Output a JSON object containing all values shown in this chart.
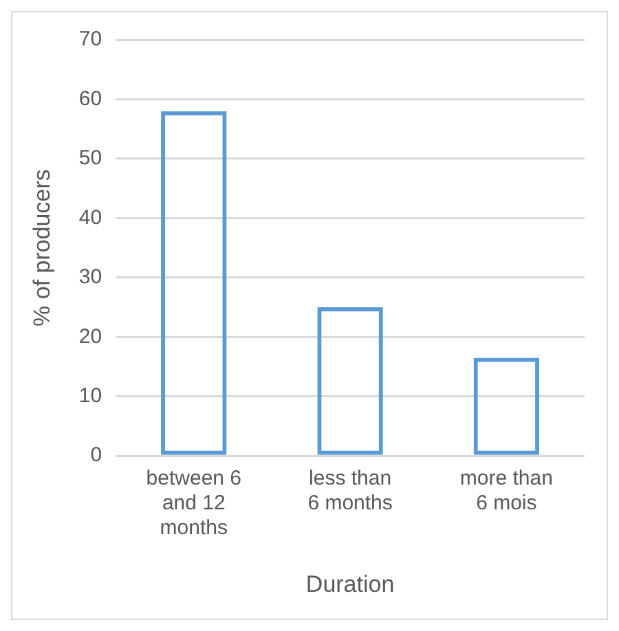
{
  "chart_data": {
    "type": "bar",
    "xlabel": "Duration",
    "ylabel": "% of producers",
    "categories": [
      "between 6 and 12 months",
      "less than 6 months",
      "more than 6 mois"
    ],
    "values": [
      58,
      25,
      16.5
    ],
    "color": "#5b9bd5",
    "ylim": [
      0,
      70
    ],
    "yticks": [
      0,
      10,
      20,
      30,
      40,
      50,
      60,
      70
    ],
    "grid": "y"
  }
}
